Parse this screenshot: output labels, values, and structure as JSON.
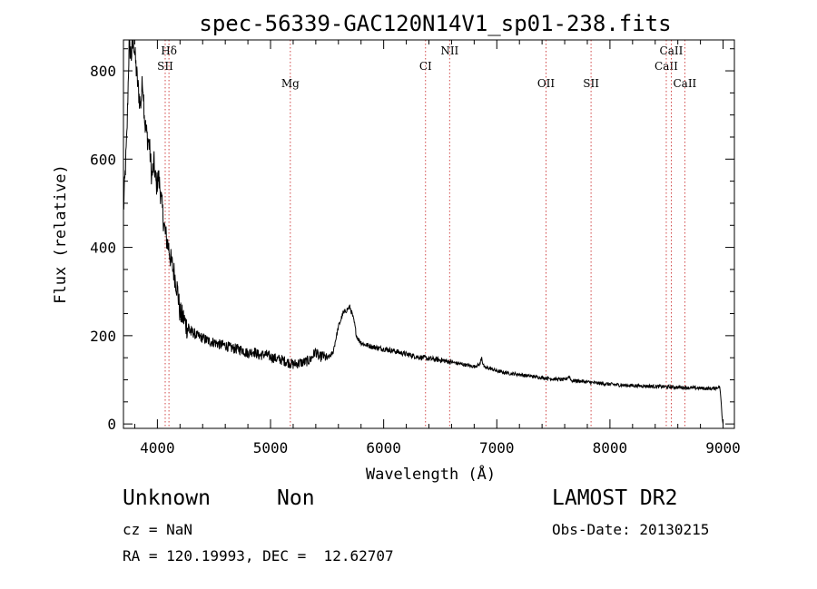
{
  "chart_data": {
    "type": "line",
    "title": "spec-56339-GAC120N14V1_sp01-238.fits",
    "xlabel": "Wavelength (Å)",
    "ylabel": "Flux (relative)",
    "xlim": [
      3700,
      9100
    ],
    "ylim": [
      -10,
      870
    ],
    "xticks": [
      4000,
      5000,
      6000,
      7000,
      8000,
      9000
    ],
    "yticks": [
      0,
      200,
      400,
      600,
      800
    ],
    "series": [
      {
        "color": "#000000",
        "x": [
          3700,
          3730,
          3750,
          3770,
          3790,
          3810,
          3830,
          3850,
          3870,
          3890,
          3910,
          3930,
          3950,
          3970,
          3990,
          4010,
          4030,
          4050,
          4070,
          4100,
          4120,
          4150,
          4180,
          4200,
          4230,
          4260,
          4300,
          4350,
          4400,
          4450,
          4500,
          4550,
          4600,
          4650,
          4700,
          4750,
          4800,
          4850,
          4900,
          4950,
          5000,
          5050,
          5100,
          5150,
          5200,
          5250,
          5300,
          5350,
          5400,
          5430,
          5460,
          5500,
          5550,
          5600,
          5640,
          5680,
          5700,
          5720,
          5740,
          5760,
          5780,
          5800,
          5830,
          5860,
          5900,
          5950,
          6000,
          6100,
          6200,
          6300,
          6400,
          6500,
          6600,
          6700,
          6800,
          6850,
          6866,
          6875,
          6890,
          6950,
          7000,
          7100,
          7200,
          7300,
          7400,
          7500,
          7600,
          7640,
          7660,
          7700,
          7800,
          7900,
          8000,
          8100,
          8200,
          8300,
          8400,
          8500,
          8600,
          8700,
          8800,
          8900,
          8950,
          8970,
          8980,
          8990,
          9000
        ],
        "y": [
          480,
          650,
          860,
          835,
          870,
          810,
          760,
          720,
          780,
          680,
          650,
          630,
          560,
          590,
          540,
          560,
          520,
          470,
          430,
          400,
          370,
          340,
          300,
          250,
          240,
          220,
          210,
          200,
          195,
          188,
          185,
          180,
          178,
          172,
          170,
          168,
          160,
          165,
          155,
          158,
          152,
          148,
          145,
          140,
          135,
          138,
          140,
          145,
          165,
          150,
          155,
          148,
          160,
          220,
          250,
          260,
          265,
          250,
          230,
          200,
          190,
          185,
          180,
          178,
          175,
          172,
          170,
          165,
          158,
          152,
          148,
          145,
          140,
          135,
          130,
          135,
          152,
          138,
          128,
          125,
          120,
          115,
          112,
          108,
          105,
          102,
          100,
          108,
          98,
          98,
          95,
          92,
          90,
          88,
          87,
          86,
          85,
          84,
          83,
          82,
          81,
          80,
          82,
          85,
          60,
          20,
          0
        ]
      }
    ],
    "lines": [
      {
        "label": "Hδ",
        "x": 4102,
        "row": 0,
        "anchor": "middle"
      },
      {
        "label": "SII",
        "x": 4069,
        "row": 1,
        "anchor": "middle"
      },
      {
        "label": "Mg",
        "x": 5175,
        "row": 2,
        "anchor": "middle"
      },
      {
        "label": "CI",
        "x": 6370,
        "row": 1,
        "anchor": "end"
      },
      {
        "label": "NII",
        "x": 6583,
        "row": 0,
        "anchor": "middle"
      },
      {
        "label": "OII",
        "x": 7435,
        "row": 2,
        "anchor": "middle"
      },
      {
        "label": "SII",
        "x": 7833,
        "row": 2,
        "anchor": "middle"
      },
      {
        "label": "CaII",
        "x": 8498,
        "row": 1,
        "anchor": "middle"
      },
      {
        "label": "CaII",
        "x": 8542,
        "row": 0,
        "anchor": "middle"
      },
      {
        "label": "CaII",
        "x": 8662,
        "row": 2,
        "anchor": "middle"
      }
    ]
  },
  "info": {
    "class": "Unknown",
    "subclass": "Non",
    "cz": "cz = NaN",
    "radec": "RA = 120.19993, DEC =  12.62707",
    "survey": "LAMOST DR2",
    "obsdate": "Obs-Date: 20130215"
  }
}
